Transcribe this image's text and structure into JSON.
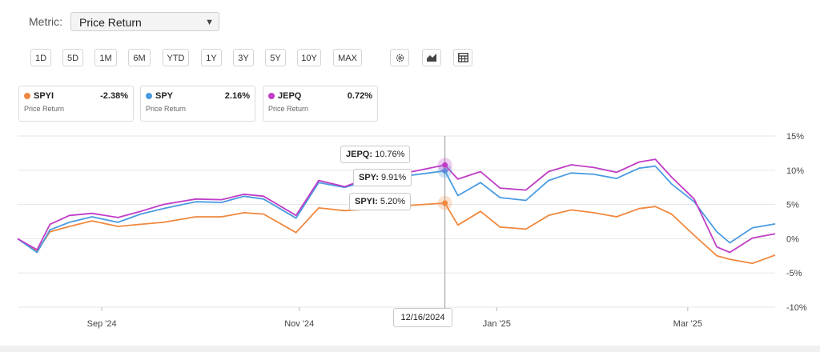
{
  "metric": {
    "label": "Metric:",
    "value": "Price Return"
  },
  "ranges": [
    "1D",
    "5D",
    "1M",
    "6M",
    "YTD",
    "1Y",
    "3Y",
    "5Y",
    "10Y",
    "MAX"
  ],
  "tools": [
    "gear-icon",
    "chart-type-icon",
    "table-icon"
  ],
  "cards": [
    {
      "ticker": "SPYI",
      "value": "-2.38%",
      "sub": "Price Return",
      "color": "#f0883e"
    },
    {
      "ticker": "SPY",
      "value": "2.16%",
      "sub": "Price Return",
      "color": "#4a9be0"
    },
    {
      "ticker": "JEPQ",
      "value": "0.72%",
      "sub": "Price Return",
      "color": "#c03cc6"
    }
  ],
  "tooltip": {
    "date": "12/16/2024",
    "items": [
      {
        "ticker": "JEPQ",
        "sep": ":",
        "value": "10.76%"
      },
      {
        "ticker": "SPY",
        "sep": ":",
        "value": "9.91%"
      },
      {
        "ticker": "SPYI",
        "sep": ":",
        "value": "5.20%"
      }
    ]
  },
  "chart_data": {
    "type": "line",
    "xlim": [
      "2024-08-06",
      "2025-03-28"
    ],
    "ylim": [
      -10,
      15
    ],
    "yticks": [
      15,
      10,
      5,
      0,
      -5,
      -10
    ],
    "ytick_labels": [
      "15%",
      "10%",
      "5%",
      "0%",
      "-5%",
      "-10%"
    ],
    "xticks": [
      "2024-09-01",
      "2024-11-01",
      "2025-01-01",
      "2025-03-01"
    ],
    "xtick_labels": [
      "Sep '24",
      "Nov '24",
      "Jan '25",
      "Mar '25"
    ],
    "grid": true,
    "crosshair_date": "2024-12-16",
    "series": [
      {
        "name": "SPYI",
        "color": "#f0883e",
        "x": [
          "2024-08-06",
          "2024-08-12",
          "2024-08-16",
          "2024-08-22",
          "2024-08-29",
          "2024-09-06",
          "2024-09-13",
          "2024-09-20",
          "2024-09-30",
          "2024-10-08",
          "2024-10-15",
          "2024-10-21",
          "2024-10-31",
          "2024-11-07",
          "2024-11-15",
          "2024-11-22",
          "2024-11-29",
          "2024-12-06",
          "2024-12-16",
          "2024-12-20",
          "2024-12-27",
          "2025-01-02",
          "2025-01-10",
          "2025-01-17",
          "2025-01-24",
          "2025-01-31",
          "2025-02-07",
          "2025-02-14",
          "2025-02-19",
          "2025-02-24",
          "2025-03-03",
          "2025-03-10",
          "2025-03-14",
          "2025-03-21",
          "2025-03-28"
        ],
        "y": [
          0,
          -1.8,
          1.0,
          1.8,
          2.6,
          1.8,
          2.1,
          2.4,
          3.2,
          3.2,
          3.8,
          3.6,
          0.9,
          4.5,
          4.1,
          4.3,
          4.8,
          4.9,
          5.2,
          2.0,
          4.0,
          1.7,
          1.4,
          3.4,
          4.2,
          3.8,
          3.2,
          4.4,
          4.7,
          3.6,
          0.5,
          -2.5,
          -3.0,
          -3.6,
          -2.4
        ]
      },
      {
        "name": "SPY",
        "color": "#4a9be0",
        "x": [
          "2024-08-06",
          "2024-08-12",
          "2024-08-16",
          "2024-08-22",
          "2024-08-29",
          "2024-09-06",
          "2024-09-13",
          "2024-09-20",
          "2024-09-30",
          "2024-10-08",
          "2024-10-15",
          "2024-10-21",
          "2024-10-31",
          "2024-11-07",
          "2024-11-15",
          "2024-11-22",
          "2024-11-29",
          "2024-12-06",
          "2024-12-16",
          "2024-12-20",
          "2024-12-27",
          "2025-01-02",
          "2025-01-10",
          "2025-01-17",
          "2025-01-24",
          "2025-01-31",
          "2025-02-07",
          "2025-02-14",
          "2025-02-19",
          "2025-02-24",
          "2025-03-03",
          "2025-03-10",
          "2025-03-14",
          "2025-03-21",
          "2025-03-28"
        ],
        "y": [
          0,
          -2.0,
          1.3,
          2.4,
          3.2,
          2.4,
          3.6,
          4.4,
          5.4,
          5.3,
          6.2,
          5.8,
          3.0,
          8.2,
          7.5,
          8.4,
          9.4,
          9.3,
          9.91,
          6.3,
          8.2,
          6.0,
          5.6,
          8.5,
          9.6,
          9.4,
          8.8,
          10.3,
          10.6,
          8.0,
          5.4,
          1.0,
          -0.6,
          1.6,
          2.16
        ]
      },
      {
        "name": "JEPQ",
        "color": "#c03cc6",
        "x": [
          "2024-08-06",
          "2024-08-12",
          "2024-08-16",
          "2024-08-22",
          "2024-08-29",
          "2024-09-06",
          "2024-09-13",
          "2024-09-20",
          "2024-09-30",
          "2024-10-08",
          "2024-10-15",
          "2024-10-21",
          "2024-10-31",
          "2024-11-07",
          "2024-11-15",
          "2024-11-22",
          "2024-11-29",
          "2024-12-06",
          "2024-12-16",
          "2024-12-20",
          "2024-12-27",
          "2025-01-02",
          "2025-01-10",
          "2025-01-17",
          "2025-01-24",
          "2025-01-31",
          "2025-02-07",
          "2025-02-14",
          "2025-02-19",
          "2025-02-24",
          "2025-03-03",
          "2025-03-10",
          "2025-03-14",
          "2025-03-21",
          "2025-03-28"
        ],
        "y": [
          0,
          -1.6,
          2.1,
          3.4,
          3.7,
          3.1,
          4.0,
          5.0,
          5.8,
          5.7,
          6.5,
          6.2,
          3.4,
          8.5,
          7.6,
          8.8,
          9.6,
          9.8,
          10.76,
          8.7,
          9.8,
          7.4,
          7.1,
          9.8,
          10.8,
          10.4,
          9.7,
          11.2,
          11.6,
          9.0,
          5.8,
          -1.2,
          -2.0,
          0.1,
          0.72
        ]
      }
    ]
  }
}
